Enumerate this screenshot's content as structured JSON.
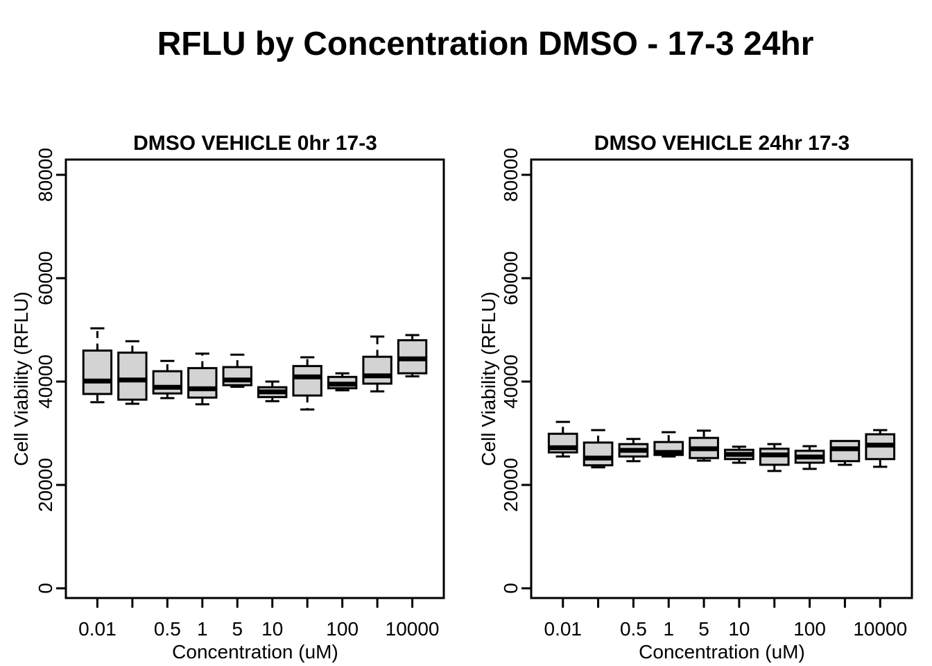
{
  "page": {
    "title": "RFLU by Concentration DMSO - 17-3 24hr",
    "background_color": "#ffffff",
    "text_color": "#000000"
  },
  "chart_data": [
    {
      "type": "boxplot",
      "title": "DMSO VEHICLE 0hr 17-3",
      "xlabel": "Concentration (uM)",
      "ylabel": "Cell Viability (RFLU)",
      "ylim": [
        0,
        83000
      ],
      "grid": false,
      "yticks": [
        0,
        20000,
        40000,
        60000,
        80000
      ],
      "ytick_labels": [
        "0",
        "20000",
        "40000",
        "60000",
        "80000"
      ],
      "xtick_labels": [
        "0.01",
        "",
        "0.5",
        "1",
        "5",
        "10",
        "",
        "100",
        "",
        "10000"
      ],
      "box_fill": "#d3d3d3",
      "box_stroke": "#000000",
      "boxes": [
        {
          "low": 36000,
          "q1": 37600,
          "median": 40100,
          "q3": 46000,
          "high": 50300
        },
        {
          "low": 35700,
          "q1": 36500,
          "median": 40300,
          "q3": 45600,
          "high": 47800
        },
        {
          "low": 36800,
          "q1": 37700,
          "median": 38900,
          "q3": 42000,
          "high": 44000
        },
        {
          "low": 35600,
          "q1": 36900,
          "median": 38600,
          "q3": 42600,
          "high": 45400
        },
        {
          "low": 39000,
          "q1": 39300,
          "median": 40300,
          "q3": 42800,
          "high": 45200
        },
        {
          "low": 36200,
          "q1": 37000,
          "median": 38000,
          "q3": 38900,
          "high": 40000
        },
        {
          "low": 34600,
          "q1": 37300,
          "median": 40900,
          "q3": 43000,
          "high": 44700
        },
        {
          "low": 38300,
          "q1": 38700,
          "median": 39500,
          "q3": 40900,
          "high": 41600
        },
        {
          "low": 38100,
          "q1": 39600,
          "median": 41100,
          "q3": 44800,
          "high": 48700
        },
        {
          "low": 41000,
          "q1": 41600,
          "median": 44400,
          "q3": 48000,
          "high": 49000
        }
      ]
    },
    {
      "type": "boxplot",
      "title": "DMSO VEHICLE 24hr 17-3",
      "xlabel": "Concentration (uM)",
      "ylabel": "Cell Viability (RFLU)",
      "ylim": [
        0,
        83000
      ],
      "grid": false,
      "yticks": [
        0,
        20000,
        40000,
        60000,
        80000
      ],
      "ytick_labels": [
        "0",
        "20000",
        "40000",
        "60000",
        "80000"
      ],
      "xtick_labels": [
        "0.01",
        "",
        "0.5",
        "1",
        "5",
        "10",
        "",
        "100",
        "",
        "10000"
      ],
      "box_fill": "#d3d3d3",
      "box_stroke": "#000000",
      "boxes": [
        {
          "low": 25500,
          "q1": 26300,
          "median": 27200,
          "q3": 29900,
          "high": 32200
        },
        {
          "low": 23400,
          "q1": 23800,
          "median": 25200,
          "q3": 28200,
          "high": 30600
        },
        {
          "low": 24600,
          "q1": 25500,
          "median": 26700,
          "q3": 27900,
          "high": 28900
        },
        {
          "low": 25500,
          "q1": 25800,
          "median": 26300,
          "q3": 28300,
          "high": 30200
        },
        {
          "low": 24700,
          "q1": 25200,
          "median": 27000,
          "q3": 29100,
          "high": 30500
        },
        {
          "low": 24300,
          "q1": 25000,
          "median": 25900,
          "q3": 26800,
          "high": 27400
        },
        {
          "low": 22700,
          "q1": 23900,
          "median": 25800,
          "q3": 27000,
          "high": 27900
        },
        {
          "low": 23100,
          "q1": 24300,
          "median": 25400,
          "q3": 26600,
          "high": 27500
        },
        {
          "low": 23900,
          "q1": 24600,
          "median": 27000,
          "q3": 28500,
          "high": 28500
        },
        {
          "low": 23500,
          "q1": 25000,
          "median": 27700,
          "q3": 29800,
          "high": 30600
        }
      ]
    }
  ]
}
